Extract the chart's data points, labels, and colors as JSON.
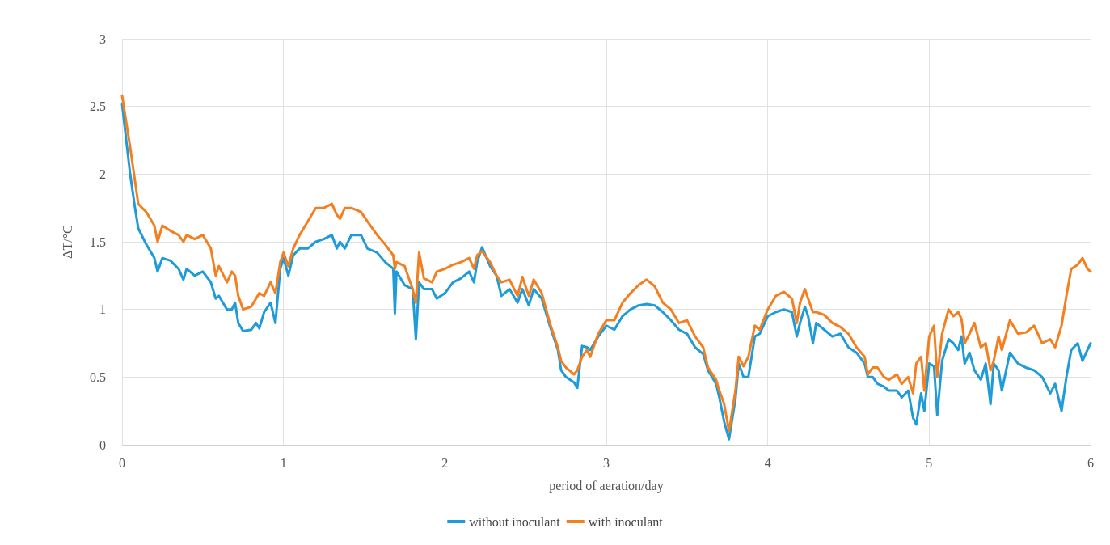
{
  "chart_data": {
    "type": "line",
    "xlabel": "period of aeration/day",
    "ylabel": "ΔT/°C",
    "x": [
      0,
      0.05,
      0.08,
      0.1,
      0.15,
      0.2,
      0.22,
      0.25,
      0.3,
      0.35,
      0.38,
      0.4,
      0.45,
      0.5,
      0.55,
      0.58,
      0.6,
      0.65,
      0.68,
      0.7,
      0.72,
      0.75,
      0.8,
      0.83,
      0.85,
      0.88,
      0.92,
      0.95,
      0.98,
      1.0,
      1.03,
      1.06,
      1.1,
      1.15,
      1.2,
      1.25,
      1.3,
      1.33,
      1.35,
      1.38,
      1.42,
      1.48,
      1.52,
      1.58,
      1.63,
      1.68,
      1.69,
      1.7,
      1.75,
      1.8,
      1.82,
      1.84,
      1.87,
      1.92,
      1.95,
      2.0,
      2.05,
      2.1,
      2.15,
      2.18,
      2.2,
      2.23,
      2.28,
      2.32,
      2.35,
      2.4,
      2.45,
      2.48,
      2.52,
      2.55,
      2.6,
      2.65,
      2.7,
      2.72,
      2.75,
      2.8,
      2.82,
      2.85,
      2.88,
      2.9,
      2.95,
      3.0,
      3.05,
      3.1,
      3.15,
      3.2,
      3.25,
      3.3,
      3.35,
      3.4,
      3.45,
      3.5,
      3.55,
      3.6,
      3.63,
      3.68,
      3.7,
      3.73,
      3.76,
      3.8,
      3.82,
      3.85,
      3.88,
      3.92,
      3.95,
      4.0,
      4.05,
      4.1,
      4.15,
      4.18,
      4.2,
      4.23,
      4.25,
      4.28,
      4.3,
      4.35,
      4.4,
      4.45,
      4.5,
      4.55,
      4.6,
      4.62,
      4.65,
      4.68,
      4.72,
      4.75,
      4.8,
      4.83,
      4.87,
      4.9,
      4.92,
      4.95,
      4.97,
      5.0,
      5.03,
      5.05,
      5.08,
      5.12,
      5.15,
      5.18,
      5.2,
      5.22,
      5.25,
      5.28,
      5.32,
      5.35,
      5.38,
      5.4,
      5.43,
      5.45,
      5.5,
      5.55,
      5.6,
      5.65,
      5.7,
      5.75,
      5.78,
      5.82,
      5.85,
      5.88,
      5.92,
      5.95,
      5.98,
      6.0
    ],
    "series": [
      {
        "name": "without inoculant",
        "color": "#1f9bd7",
        "values": [
          2.52,
          2.0,
          1.75,
          1.6,
          1.48,
          1.38,
          1.28,
          1.38,
          1.36,
          1.3,
          1.22,
          1.3,
          1.25,
          1.28,
          1.2,
          1.08,
          1.1,
          1.0,
          1.0,
          1.05,
          0.9,
          0.84,
          0.85,
          0.9,
          0.86,
          0.98,
          1.05,
          0.9,
          1.3,
          1.38,
          1.25,
          1.4,
          1.45,
          1.45,
          1.5,
          1.52,
          1.55,
          1.45,
          1.5,
          1.45,
          1.55,
          1.55,
          1.45,
          1.42,
          1.35,
          1.3,
          0.97,
          1.28,
          1.18,
          1.15,
          0.78,
          1.2,
          1.15,
          1.15,
          1.08,
          1.12,
          1.2,
          1.23,
          1.28,
          1.2,
          1.35,
          1.46,
          1.32,
          1.25,
          1.1,
          1.15,
          1.05,
          1.15,
          1.03,
          1.15,
          1.08,
          0.88,
          0.7,
          0.55,
          0.5,
          0.46,
          0.42,
          0.73,
          0.72,
          0.7,
          0.8,
          0.88,
          0.85,
          0.95,
          1.0,
          1.03,
          1.04,
          1.03,
          0.98,
          0.92,
          0.85,
          0.82,
          0.72,
          0.67,
          0.55,
          0.45,
          0.35,
          0.17,
          0.04,
          0.34,
          0.6,
          0.5,
          0.5,
          0.8,
          0.82,
          0.95,
          0.98,
          1.0,
          0.98,
          0.8,
          0.9,
          1.02,
          0.95,
          0.75,
          0.9,
          0.85,
          0.8,
          0.82,
          0.72,
          0.68,
          0.6,
          0.5,
          0.5,
          0.45,
          0.43,
          0.4,
          0.4,
          0.35,
          0.4,
          0.2,
          0.15,
          0.38,
          0.25,
          0.6,
          0.58,
          0.22,
          0.62,
          0.78,
          0.75,
          0.7,
          0.8,
          0.6,
          0.68,
          0.55,
          0.48,
          0.6,
          0.3,
          0.6,
          0.55,
          0.4,
          0.68,
          0.6,
          0.57,
          0.55,
          0.5,
          0.38,
          0.45,
          0.25,
          0.5,
          0.7,
          0.75,
          0.62,
          0.7,
          0.75
        ]
      },
      {
        "name": "with inoculant",
        "color": "#f47f20",
        "values": [
          2.58,
          2.2,
          1.95,
          1.78,
          1.72,
          1.62,
          1.5,
          1.62,
          1.58,
          1.55,
          1.5,
          1.55,
          1.52,
          1.55,
          1.45,
          1.25,
          1.32,
          1.2,
          1.28,
          1.25,
          1.1,
          1.0,
          1.02,
          1.08,
          1.12,
          1.1,
          1.2,
          1.12,
          1.35,
          1.42,
          1.32,
          1.45,
          1.55,
          1.65,
          1.75,
          1.75,
          1.78,
          1.7,
          1.67,
          1.75,
          1.75,
          1.72,
          1.65,
          1.55,
          1.48,
          1.4,
          1.3,
          1.35,
          1.32,
          1.15,
          1.05,
          1.42,
          1.23,
          1.2,
          1.28,
          1.3,
          1.33,
          1.35,
          1.38,
          1.3,
          1.4,
          1.43,
          1.35,
          1.25,
          1.2,
          1.22,
          1.1,
          1.24,
          1.1,
          1.22,
          1.12,
          0.9,
          0.72,
          0.62,
          0.57,
          0.52,
          0.55,
          0.65,
          0.7,
          0.65,
          0.82,
          0.92,
          0.92,
          1.05,
          1.12,
          1.18,
          1.22,
          1.17,
          1.05,
          1.0,
          0.9,
          0.92,
          0.8,
          0.72,
          0.57,
          0.48,
          0.4,
          0.3,
          0.1,
          0.4,
          0.65,
          0.58,
          0.65,
          0.88,
          0.85,
          1.0,
          1.1,
          1.13,
          1.08,
          0.9,
          1.05,
          1.15,
          1.08,
          0.98,
          0.98,
          0.96,
          0.9,
          0.87,
          0.82,
          0.72,
          0.65,
          0.52,
          0.57,
          0.57,
          0.5,
          0.48,
          0.52,
          0.45,
          0.5,
          0.38,
          0.6,
          0.65,
          0.4,
          0.8,
          0.88,
          0.5,
          0.82,
          1.0,
          0.95,
          0.98,
          0.93,
          0.75,
          0.82,
          0.9,
          0.72,
          0.75,
          0.55,
          0.62,
          0.8,
          0.7,
          0.92,
          0.82,
          0.83,
          0.88,
          0.75,
          0.78,
          0.72,
          0.88,
          1.1,
          1.3,
          1.33,
          1.38,
          1.3,
          1.28
        ]
      }
    ],
    "xlim": [
      0,
      6
    ],
    "xticks": [
      0,
      1,
      2,
      3,
      4,
      5,
      6
    ],
    "ylim": [
      0,
      3
    ],
    "yticks": [
      0,
      0.5,
      1,
      1.5,
      2,
      2.5,
      3
    ],
    "grid": true,
    "legend": "bottom",
    "marker": "none",
    "line_style": "solid"
  }
}
